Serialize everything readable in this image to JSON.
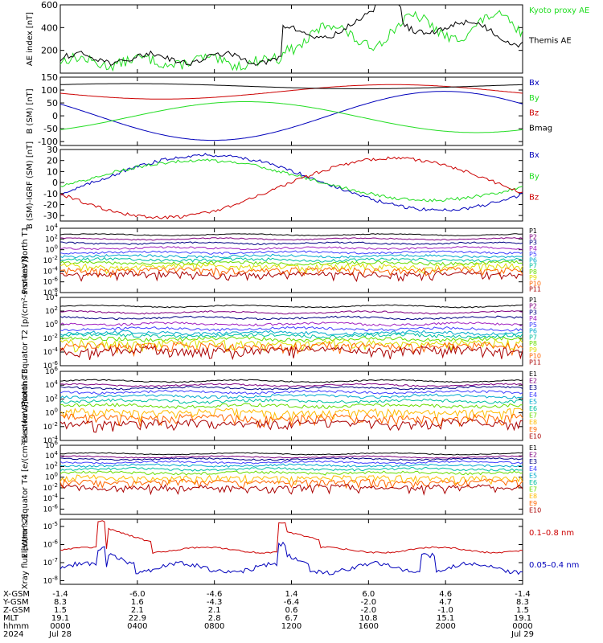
{
  "colors": {
    "black": "#000000",
    "green": "#22dd22",
    "red": "#cc0000",
    "blue": "#0000bb",
    "purple": "#800080",
    "navy": "#000080",
    "violet": "#a020c0",
    "indigo": "#4040ff",
    "cyan": "#00aacc",
    "teal": "#00c0a0",
    "lime": "#66dd00",
    "yellow": "#dddd00",
    "gold": "#ffbb00",
    "orange": "#ff6600",
    "darkred": "#aa0000"
  },
  "chart_data": [
    {
      "type": "line",
      "ylabel": "AE index [nT]",
      "ylim": [
        0,
        600
      ],
      "yticks": [
        "600",
        "400",
        "200"
      ],
      "series": [
        {
          "name": "Kyoto proxy AE",
          "color": "green",
          "shape": "ae_kyoto"
        },
        {
          "name": "Themis AE",
          "color": "black",
          "shape": "ae_themis"
        }
      ]
    },
    {
      "type": "line",
      "ylabel": "B (SM) [nT]",
      "ylim": [
        -115,
        150
      ],
      "yticks": [
        "150",
        "100",
        "50",
        "0",
        "-50",
        "-100"
      ],
      "series": [
        {
          "name": "Bx",
          "color": "blue",
          "shape": "bx"
        },
        {
          "name": "By",
          "color": "green",
          "shape": "by"
        },
        {
          "name": "Bz",
          "color": "red",
          "shape": "bz"
        },
        {
          "name": "Bmag",
          "color": "black",
          "shape": "bmag"
        }
      ]
    },
    {
      "type": "line",
      "ylabel": "B (SM)-IGRF (SM) [nT]",
      "ylim": [
        -35,
        30
      ],
      "yticks": [
        "30",
        "20",
        "10",
        "0",
        "-10",
        "-20",
        "-30"
      ],
      "series": [
        {
          "name": "Bx",
          "color": "blue",
          "shape": "dbx"
        },
        {
          "name": "By",
          "color": "green",
          "shape": "dby"
        },
        {
          "name": "Bz",
          "color": "red",
          "shape": "dbz"
        }
      ]
    },
    {
      "type": "line",
      "log": true,
      "ylabel": "Protons North T1",
      "yticks": [
        "10^4",
        "10^2",
        "10^0",
        "10^-2",
        "10^-4",
        "10^-6",
        "10^-8"
      ],
      "decade_range": [
        4,
        -8
      ],
      "series": [
        {
          "name": "P1",
          "color": "black",
          "level": 2.8
        },
        {
          "name": "P2",
          "color": "purple",
          "level": 2.0
        },
        {
          "name": "P3",
          "color": "navy",
          "level": 1.2
        },
        {
          "name": "P4",
          "color": "violet",
          "level": 0.3
        },
        {
          "name": "P5",
          "color": "indigo",
          "level": -0.5
        },
        {
          "name": "P6",
          "color": "cyan",
          "level": -1.2
        },
        {
          "name": "P7",
          "color": "teal",
          "level": -1.9
        },
        {
          "name": "P8",
          "color": "lime",
          "level": -2.5
        },
        {
          "name": "P9",
          "color": "yellow",
          "level": -3.0
        },
        {
          "name": "P10",
          "color": "orange",
          "level": -3.7
        },
        {
          "name": "P11",
          "color": "darkred",
          "level": -4.5
        }
      ]
    },
    {
      "type": "line",
      "log": true,
      "ylabel": "Protons Equator T2 [p/(cm²-s-sr-keV)]",
      "yticks": [
        "10^4",
        "10^2",
        "10^0",
        "10^-2",
        "10^-4",
        "10^-6"
      ],
      "decade_range": [
        4,
        -6
      ],
      "series": [
        {
          "name": "P1",
          "color": "black",
          "level": 2.7
        },
        {
          "name": "P2",
          "color": "purple",
          "level": 1.8
        },
        {
          "name": "P3",
          "color": "navy",
          "level": 1.0
        },
        {
          "name": "P4",
          "color": "violet",
          "level": 0.1
        },
        {
          "name": "P5",
          "color": "indigo",
          "level": -0.6
        },
        {
          "name": "P6",
          "color": "cyan",
          "level": -1.2
        },
        {
          "name": "P7",
          "color": "teal",
          "level": -1.6
        },
        {
          "name": "P8",
          "color": "lime",
          "level": -2.1
        },
        {
          "name": "P9",
          "color": "yellow",
          "level": -2.6
        },
        {
          "name": "P10",
          "color": "orange",
          "level": -3.0
        },
        {
          "name": "P11",
          "color": "darkred",
          "level": -3.6
        }
      ]
    },
    {
      "type": "line",
      "log": true,
      "ylabel": "Electrons North T3",
      "yticks": [
        "10^6",
        "10^4",
        "10^2",
        "10^0",
        "10^-2",
        "10^-4"
      ],
      "decade_range": [
        6,
        -4
      ],
      "series": [
        {
          "name": "E1",
          "color": "black",
          "level": 4.6
        },
        {
          "name": "E2",
          "color": "purple",
          "level": 4.0
        },
        {
          "name": "E3",
          "color": "navy",
          "level": 3.6
        },
        {
          "name": "E4",
          "color": "indigo",
          "level": 3.0
        },
        {
          "name": "E5",
          "color": "cyan",
          "level": 2.4
        },
        {
          "name": "E6",
          "color": "teal",
          "level": 1.7
        },
        {
          "name": "E7",
          "color": "lime",
          "level": 1.0
        },
        {
          "name": "E8",
          "color": "gold",
          "level": 0.2
        },
        {
          "name": "E9",
          "color": "orange",
          "level": -0.6
        },
        {
          "name": "E10",
          "color": "darkred",
          "level": -1.4
        }
      ]
    },
    {
      "type": "line",
      "log": true,
      "ylabel": "Electrons Equator T4 [e/(cm²-s-sr-keV)]",
      "yticks": [
        "10^6",
        "10^4",
        "10^2",
        "10^0",
        "10^-2",
        "10^-4",
        "10^-6"
      ],
      "decade_range": [
        6,
        -7
      ],
      "series": [
        {
          "name": "E1",
          "color": "black",
          "level": 4.4
        },
        {
          "name": "E2",
          "color": "purple",
          "level": 3.8
        },
        {
          "name": "E3",
          "color": "navy",
          "level": 3.4
        },
        {
          "name": "E4",
          "color": "indigo",
          "level": 2.8
        },
        {
          "name": "E5",
          "color": "cyan",
          "level": 2.2
        },
        {
          "name": "E6",
          "color": "teal",
          "level": 1.5
        },
        {
          "name": "E7",
          "color": "lime",
          "level": 0.8
        },
        {
          "name": "E8",
          "color": "gold",
          "level": 0.0
        },
        {
          "name": "E9",
          "color": "orange",
          "level": -0.8
        },
        {
          "name": "E10",
          "color": "darkred",
          "level": -1.8
        }
      ]
    },
    {
      "type": "line",
      "log": true,
      "ylabel": "Xray flux [W/m^2]",
      "yticks": [
        "10^-5",
        "10^-6",
        "10^-7",
        "10^-8"
      ],
      "decade_range": [
        -4.6,
        -8.2
      ],
      "series": [
        {
          "name": "0.1–0.8 nm",
          "color": "red",
          "shape": "xlong"
        },
        {
          "name": "0.05–0.4 nm",
          "color": "blue",
          "shape": "xshort"
        }
      ]
    }
  ],
  "ephemeris": {
    "row_labels": [
      "X-GSM",
      "Y-GSM",
      "Z-GSM",
      "MLT",
      "hhmm",
      "2024"
    ],
    "columns": [
      [
        "-1.4",
        "8.3",
        "1.5",
        "19.1",
        "0000",
        "Jul 28"
      ],
      [
        "-6.0",
        "1.6",
        "2.1",
        "22.9",
        "0400",
        ""
      ],
      [
        "-4.6",
        "-4.3",
        "2.1",
        "2.8",
        "0800",
        ""
      ],
      [
        "1.4",
        "-6.4",
        "0.6",
        "6.7",
        "1200",
        ""
      ],
      [
        "6.0",
        "-2.0",
        "-2.0",
        "10.8",
        "1600",
        ""
      ],
      [
        "4.6",
        "4.7",
        "-1.0",
        "15.1",
        "2000",
        ""
      ],
      [
        "-1.4",
        "8.3",
        "1.5",
        "19.1",
        "0000",
        "Jul 29"
      ]
    ]
  }
}
